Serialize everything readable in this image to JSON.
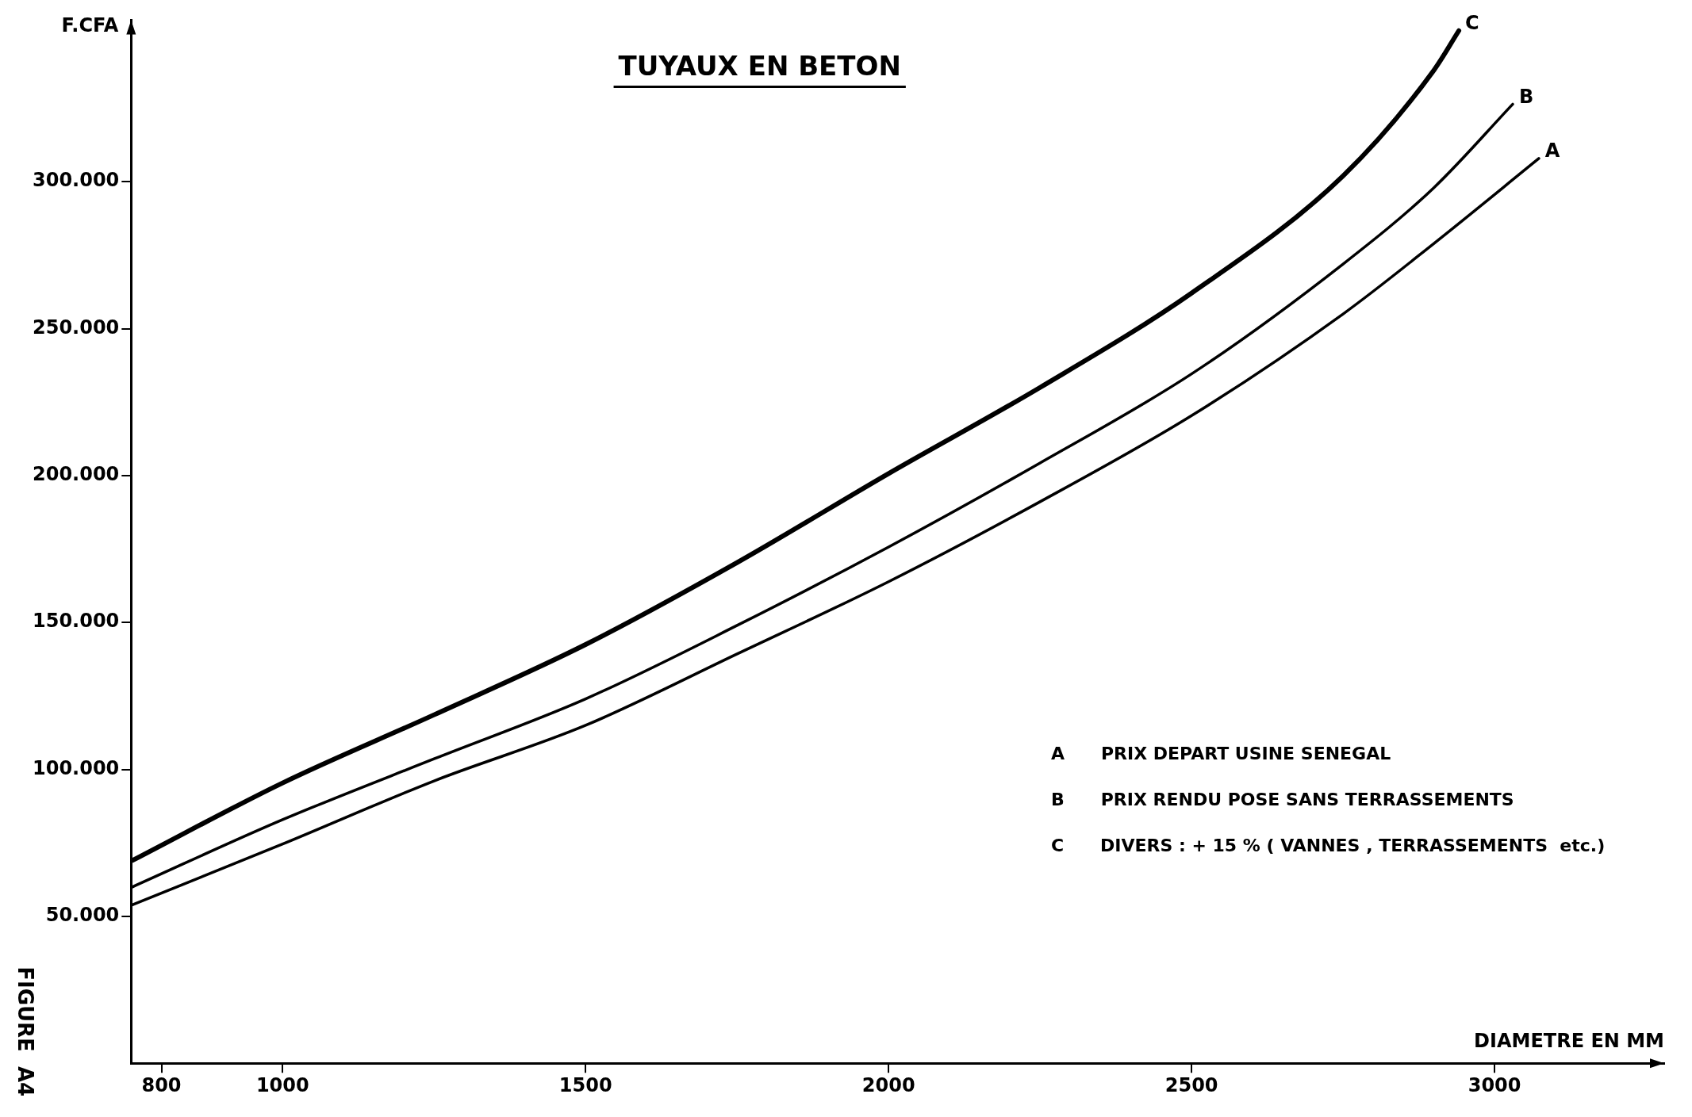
{
  "chart_data": {
    "type": "line",
    "title": "TUYAUX EN BETON",
    "xlabel": "DIAMETRE EN MM",
    "ylabel": "F.CFA",
    "xlim": [
      750,
      3280
    ],
    "ylim": [
      0,
      355000
    ],
    "xticks": [
      800,
      1000,
      1500,
      2000,
      2500,
      3000
    ],
    "yticks": [
      {
        "value": 50000,
        "label": "50.000"
      },
      {
        "value": 100000,
        "label": "100.000"
      },
      {
        "value": 150000,
        "label": "150.000"
      },
      {
        "value": 200000,
        "label": "200.000"
      },
      {
        "value": 250000,
        "label": "250.000"
      },
      {
        "value": 300000,
        "label": "300.000"
      }
    ],
    "grid": false,
    "legend": false,
    "marker": "none",
    "line_style": "solid",
    "series": [
      {
        "name": "A",
        "color": "#000000",
        "x": [
          752,
          1000,
          1250,
          1500,
          1750,
          2000,
          2250,
          2500,
          2750,
          2900,
          3073
        ],
        "values": [
          53900,
          74600,
          96100,
          115000,
          139300,
          163900,
          191100,
          220400,
          255000,
          279000,
          307900
        ]
      },
      {
        "name": "B",
        "color": "#000000",
        "x": [
          752,
          1000,
          1250,
          1500,
          1750,
          2000,
          2250,
          2500,
          2750,
          2900,
          3030
        ],
        "values": [
          60000,
          82900,
          103600,
          124000,
          149000,
          175700,
          204300,
          234600,
          272000,
          298000,
          326400
        ]
      },
      {
        "name": "C",
        "color": "#000000",
        "x": [
          752,
          1000,
          1250,
          1500,
          1750,
          2000,
          2250,
          2500,
          2750,
          2900,
          2941
        ],
        "values": [
          69000,
          95400,
          118600,
          142500,
          170400,
          200700,
          230000,
          262100,
          302000,
          338000,
          351400
        ]
      }
    ],
    "annotations": [
      "A      PRIX DEPART USINE SENEGAL",
      "B      PRIX RENDU POSE SANS TERRASSEMENTS",
      "C      DIVERS : + 15 % ( VANNES , TERRASSEMENTS  etc.)",
      "FIGURE  A4"
    ]
  }
}
